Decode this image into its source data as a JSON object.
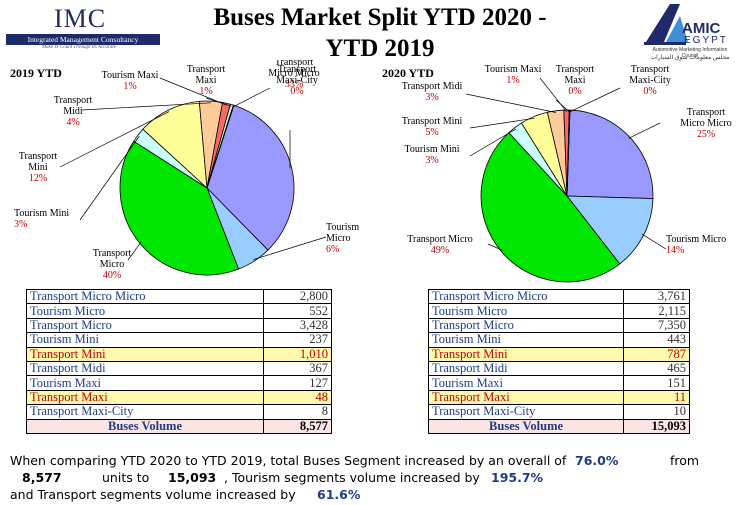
{
  "header": {
    "title_line1": "Buses Market Split YTD 2020 -",
    "title_line2": "YTD 2019",
    "left_logo_text": "IMC",
    "left_logo_bar": "Integrated Management Consultancy",
    "left_logo_tag": "Make IT Count Through Its Accurate",
    "right_logo_text": "AMIC",
    "right_logo_sub": "EGYPT",
    "right_logo_line1": "Automotive Marketing Information Council",
    "right_logo_line2": "مجلس معلومات سوق السيارات"
  },
  "chart_data": [
    {
      "type": "pie",
      "title": "2019 YTD",
      "categories": [
        "Transport Micro Micro",
        "Tourism Micro",
        "Transport Micro",
        "Tourism Mini",
        "Transport Mini",
        "Transport Midi",
        "Tourism Maxi",
        "Transport Maxi",
        "Transport Maxi-City"
      ],
      "values": [
        2800,
        552,
        3428,
        237,
        1010,
        367,
        127,
        48,
        8
      ],
      "percent_labels": [
        "33%",
        "6%",
        "40%",
        "3%",
        "12%",
        "4%",
        "1%",
        "1%",
        "0%"
      ],
      "label_lines": [
        [
          "Transport",
          "Micro Micro"
        ],
        [
          "Tourism",
          "Micro"
        ],
        [
          "Transport",
          "Micro"
        ],
        [
          "Tourism Mini"
        ],
        [
          "Transport",
          "Mini"
        ],
        [
          "Transport",
          "Midi"
        ],
        [
          "Tourism Maxi"
        ],
        [
          "Transport",
          "Maxi"
        ],
        [
          "Transport",
          "Maxi-City"
        ]
      ],
      "total_label": "Buses Volume",
      "total": "8,577",
      "display_values": [
        "2,800",
        "552",
        "3,428",
        "237",
        "1,010",
        "367",
        "127",
        "48",
        "8"
      ]
    },
    {
      "type": "pie",
      "title": "2020 YTD",
      "categories": [
        "Transport Micro Micro",
        "Tourism Micro",
        "Transport Micro",
        "Tourism Mini",
        "Transport Mini",
        "Transport Midi",
        "Tourism Maxi",
        "Transport Maxi",
        "Transport Maxi-City"
      ],
      "values": [
        3761,
        2115,
        7350,
        443,
        787,
        465,
        151,
        11,
        10
      ],
      "percent_labels": [
        "25%",
        "14%",
        "49%",
        "3%",
        "5%",
        "3%",
        "1%",
        "0%",
        "0%"
      ],
      "label_lines": [
        [
          "Transport",
          "Micro Micro"
        ],
        [
          "Tourism Micro"
        ],
        [
          "Transport Micro"
        ],
        [
          "Tourism Mini"
        ],
        [
          "Transport Mini"
        ],
        [
          "Transport Midi"
        ],
        [
          "Tourism Maxi"
        ],
        [
          "Transport",
          "Maxi"
        ],
        [
          "Transport",
          "Maxi-City"
        ]
      ],
      "total_label": "Buses Volume",
      "total": "15,093",
      "display_values": [
        "3,761",
        "2,115",
        "7,350",
        "443",
        "787",
        "465",
        "151",
        "11",
        "10"
      ]
    }
  ],
  "colors": [
    "#9999ff",
    "#99ccff",
    "#00e600",
    "#ccffff",
    "#ffff99",
    "#ffcc99",
    "#ff6666",
    "#ccffcc",
    "#ffffff"
  ],
  "highlight_rows": [
    "Transport Mini",
    "Transport Maxi"
  ],
  "summary": {
    "part1": "When comparing YTD 2020 to YTD 2019, total Buses Segment increased by an overall of",
    "pct_total": "76.0%",
    "from": "from",
    "v2019": "8,577",
    "units_to": "units to",
    "v2020": "15,093",
    "part2": ", Tourism segments volume increased by",
    "pct_tourism": "195.7%",
    "part3": "and Transport segments volume increased by",
    "pct_transport": "61.6%"
  }
}
